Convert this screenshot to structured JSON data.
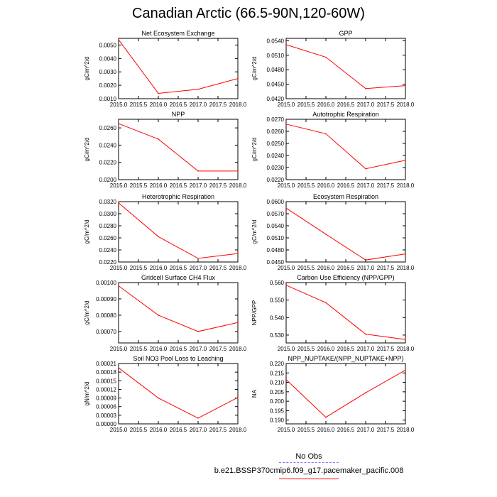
{
  "title": "Canadian Arctic (66.5-90N,120-60W)",
  "legend": {
    "obs_label": "No Obs",
    "case_label": "b.e21.BSSP370cmip6.f09_g17.pacemaker_pacific.008",
    "obs_color": "#7b7bf0",
    "case_color": "#ff0000"
  },
  "chart_data": [
    {
      "type": "line",
      "title": "Net Ecosystem Exchange",
      "ylabel": "gC/m^2/d",
      "x": [
        2015,
        2016,
        2017,
        2018
      ],
      "values": [
        0.0054,
        0.0014,
        0.0017,
        0.0025
      ],
      "xlim": [
        2015,
        2018
      ],
      "ylim": [
        0.001,
        0.0055
      ],
      "xticks": [
        "2015.0",
        "2015.5",
        "2016.0",
        "2016.5",
        "2017.0",
        "2017.5",
        "2018.0"
      ],
      "yticks": [
        {
          "v": 0.001,
          "label": "0.0010"
        },
        {
          "v": 0.002,
          "label": "0.0020"
        },
        {
          "v": 0.003,
          "label": "0.0030"
        },
        {
          "v": 0.004,
          "label": "0.0040"
        },
        {
          "v": 0.005,
          "label": "0.0050"
        }
      ],
      "line_color": "#ff0000"
    },
    {
      "type": "line",
      "title": "GPP",
      "ylabel": "gC/m^2/d",
      "x": [
        2015,
        2016,
        2017,
        2018
      ],
      "values": [
        0.0532,
        0.0506,
        0.0441,
        0.0447
      ],
      "xlim": [
        2015,
        2018
      ],
      "ylim": [
        0.042,
        0.0545
      ],
      "xticks": [
        "2015.0",
        "2015.5",
        "2016.0",
        "2016.5",
        "2017.0",
        "2017.5",
        "2018.0"
      ],
      "yticks": [
        {
          "v": 0.042,
          "label": "0.0420"
        },
        {
          "v": 0.045,
          "label": "0.0450"
        },
        {
          "v": 0.048,
          "label": "0.0480"
        },
        {
          "v": 0.051,
          "label": "0.0510"
        },
        {
          "v": 0.054,
          "label": "0.0540"
        }
      ],
      "line_color": "#ff0000"
    },
    {
      "type": "line",
      "title": "NPP",
      "ylabel": "gC/m^2/d",
      "x": [
        2015,
        2016,
        2017,
        2018
      ],
      "values": [
        0.0265,
        0.0247,
        0.021,
        0.021
      ],
      "xlim": [
        2015,
        2018
      ],
      "ylim": [
        0.02,
        0.027
      ],
      "xticks": [
        "2015.0",
        "2015.5",
        "2016.0",
        "2016.5",
        "2017.0",
        "2017.5",
        "2018.0"
      ],
      "yticks": [
        {
          "v": 0.02,
          "label": "0.0200"
        },
        {
          "v": 0.022,
          "label": "0.0220"
        },
        {
          "v": 0.024,
          "label": "0.0240"
        },
        {
          "v": 0.026,
          "label": "0.0260"
        }
      ],
      "line_color": "#ff0000"
    },
    {
      "type": "line",
      "title": "Autotrophic Respiration",
      "ylabel": "gC/m^2/d",
      "x": [
        2015,
        2016,
        2017,
        2018
      ],
      "values": [
        0.0266,
        0.0258,
        0.0229,
        0.0236
      ],
      "xlim": [
        2015,
        2018
      ],
      "ylim": [
        0.022,
        0.027
      ],
      "xticks": [
        "2015.0",
        "2015.5",
        "2016.0",
        "2016.5",
        "2017.0",
        "2017.5",
        "2018.0"
      ],
      "yticks": [
        {
          "v": 0.022,
          "label": "0.0220"
        },
        {
          "v": 0.023,
          "label": "0.0230"
        },
        {
          "v": 0.024,
          "label": "0.0240"
        },
        {
          "v": 0.025,
          "label": "0.0250"
        },
        {
          "v": 0.026,
          "label": "0.0260"
        },
        {
          "v": 0.027,
          "label": "0.0270"
        }
      ],
      "line_color": "#ff0000"
    },
    {
      "type": "line",
      "title": "Heterotrophic Respiration",
      "ylabel": "gC/m^2/d",
      "x": [
        2015,
        2016,
        2017,
        2018
      ],
      "values": [
        0.0318,
        0.0262,
        0.0226,
        0.0234
      ],
      "xlim": [
        2015,
        2018
      ],
      "ylim": [
        0.022,
        0.032
      ],
      "xticks": [
        "2015.0",
        "2015.5",
        "2016.0",
        "2016.5",
        "2017.0",
        "2017.5",
        "2018.0"
      ],
      "yticks": [
        {
          "v": 0.022,
          "label": "0.0220"
        },
        {
          "v": 0.024,
          "label": "0.0240"
        },
        {
          "v": 0.026,
          "label": "0.0260"
        },
        {
          "v": 0.028,
          "label": "0.0280"
        },
        {
          "v": 0.03,
          "label": "0.0300"
        },
        {
          "v": 0.032,
          "label": "0.0320"
        }
      ],
      "line_color": "#ff0000"
    },
    {
      "type": "line",
      "title": "Ecosystem Respiration",
      "ylabel": "gC/m^2/d",
      "x": [
        2015,
        2016,
        2017,
        2018
      ],
      "values": [
        0.0584,
        0.0519,
        0.0455,
        0.047
      ],
      "xlim": [
        2015,
        2018
      ],
      "ylim": [
        0.045,
        0.06
      ],
      "xticks": [
        "2015.0",
        "2015.5",
        "2016.0",
        "2016.5",
        "2017.0",
        "2017.5",
        "2018.0"
      ],
      "yticks": [
        {
          "v": 0.045,
          "label": "0.0450"
        },
        {
          "v": 0.048,
          "label": "0.0480"
        },
        {
          "v": 0.051,
          "label": "0.0510"
        },
        {
          "v": 0.054,
          "label": "0.0540"
        },
        {
          "v": 0.057,
          "label": "0.0570"
        },
        {
          "v": 0.06,
          "label": "0.0600"
        }
      ],
      "line_color": "#ff0000"
    },
    {
      "type": "line",
      "title": "Gridcell Surface CH4 Flux",
      "ylabel": "gC/m^2/d",
      "x": [
        2015,
        2016,
        2017,
        2018
      ],
      "values": [
        0.00098,
        0.0008,
        0.0007,
        0.000755
      ],
      "xlim": [
        2015,
        2018
      ],
      "ylim": [
        0.00063,
        0.001
      ],
      "xticks": [
        "2015.0",
        "2015.5",
        "2016.0",
        "2016.5",
        "2017.0",
        "2017.5",
        "2018.0"
      ],
      "yticks": [
        {
          "v": 0.0007,
          "label": "0.00070"
        },
        {
          "v": 0.0008,
          "label": "0.00080"
        },
        {
          "v": 0.0009,
          "label": "0.00090"
        },
        {
          "v": 0.001,
          "label": "0.00100"
        }
      ],
      "line_color": "#ff0000"
    },
    {
      "type": "line",
      "title": "Carbon Use Efficiency (NPP/GPP)",
      "ylabel": "NPP/GPP",
      "x": [
        2015,
        2016,
        2017,
        2018
      ],
      "values": [
        0.5585,
        0.5485,
        0.5305,
        0.5275
      ],
      "xlim": [
        2015,
        2018
      ],
      "ylim": [
        0.5255,
        0.56
      ],
      "xticks": [
        "2015.0",
        "2015.5",
        "2016.0",
        "2016.5",
        "2017.0",
        "2017.5",
        "2018.0"
      ],
      "yticks": [
        {
          "v": 0.53,
          "label": "0.530"
        },
        {
          "v": 0.54,
          "label": "0.540"
        },
        {
          "v": 0.55,
          "label": "0.550"
        },
        {
          "v": 0.56,
          "label": "0.560"
        }
      ],
      "line_color": "#ff0000"
    },
    {
      "type": "line",
      "title": "Soil NO3 Pool Loss to Leaching",
      "ylabel": "gN/m^2/d",
      "x": [
        2015,
        2016,
        2017,
        2018
      ],
      "values": [
        0.000195,
        9e-05,
        2e-05,
        9.2e-05
      ],
      "xlim": [
        2015,
        2018
      ],
      "ylim": [
        0.0,
        0.00021
      ],
      "xticks": [
        "2015.0",
        "2015.5",
        "2016.0",
        "2016.5",
        "2017.0",
        "2017.5",
        "2018.0"
      ],
      "yticks": [
        {
          "v": 0.0,
          "label": "0.00000"
        },
        {
          "v": 3e-05,
          "label": "0.00003"
        },
        {
          "v": 6e-05,
          "label": "0.00006"
        },
        {
          "v": 9e-05,
          "label": "0.00009"
        },
        {
          "v": 0.00012,
          "label": "0.00012"
        },
        {
          "v": 0.00015,
          "label": "0.00015"
        },
        {
          "v": 0.00018,
          "label": "0.00018"
        },
        {
          "v": 0.00021,
          "label": "0.00021"
        }
      ],
      "line_color": "#ff0000"
    },
    {
      "type": "line",
      "title": "NPP_NUPTAKE/(NPP_NUPTAKE+NPP)",
      "ylabel": "NA",
      "x": [
        2015,
        2016,
        2017,
        2018
      ],
      "values": [
        0.2115,
        0.1915,
        0.2045,
        0.2165
      ],
      "xlim": [
        2015,
        2018
      ],
      "ylim": [
        0.188,
        0.22
      ],
      "xticks": [
        "2015.0",
        "2015.5",
        "2016.0",
        "2016.5",
        "2017.0",
        "2017.5",
        "2018.0"
      ],
      "yticks": [
        {
          "v": 0.19,
          "label": "0.190"
        },
        {
          "v": 0.195,
          "label": "0.195"
        },
        {
          "v": 0.2,
          "label": "0.200"
        },
        {
          "v": 0.205,
          "label": "0.205"
        },
        {
          "v": 0.21,
          "label": "0.210"
        },
        {
          "v": 0.215,
          "label": "0.215"
        },
        {
          "v": 0.22,
          "label": "0.220"
        }
      ],
      "line_color": "#ff0000"
    }
  ]
}
